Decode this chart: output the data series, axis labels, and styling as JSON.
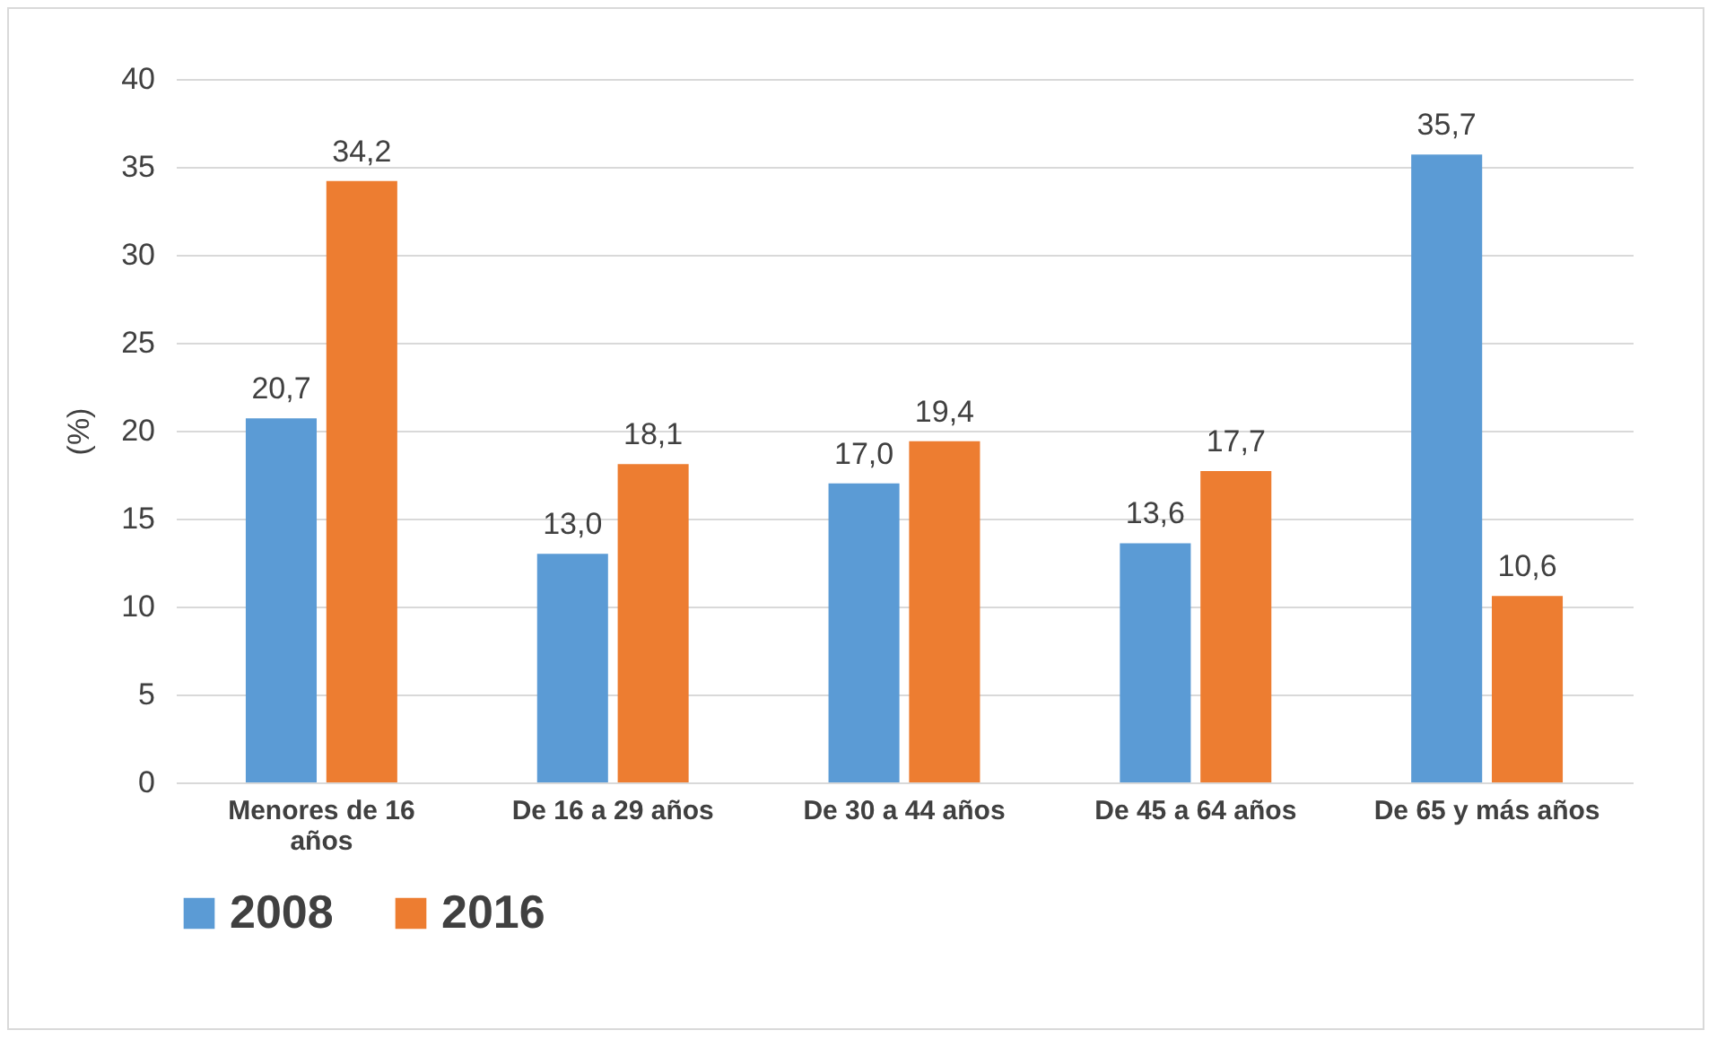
{
  "chart_data": {
    "type": "bar",
    "ylabel": "(%)",
    "categories": [
      "Menores de 16 años",
      "De 16 a 29 años",
      "De 30 a 44 años",
      "De 45 a 64 años",
      "De 65 y más años"
    ],
    "series": [
      {
        "name": "2008",
        "color": "#5b9bd5",
        "values": [
          20.7,
          13.0,
          17.0,
          13.6,
          35.7
        ],
        "value_labels": [
          "20,7",
          "13,0",
          "17,0",
          "13,6",
          "35,7"
        ]
      },
      {
        "name": "2016",
        "color": "#ed7d31",
        "values": [
          34.2,
          18.1,
          19.4,
          17.7,
          10.6
        ],
        "value_labels": [
          "34,2",
          "18,1",
          "19,4",
          "17,7",
          "10,6"
        ]
      }
    ],
    "ylim": [
      0,
      40
    ],
    "yticks": [
      0,
      5,
      10,
      15,
      20,
      25,
      30,
      35,
      40
    ],
    "grid": "y",
    "legend": "bottom"
  }
}
